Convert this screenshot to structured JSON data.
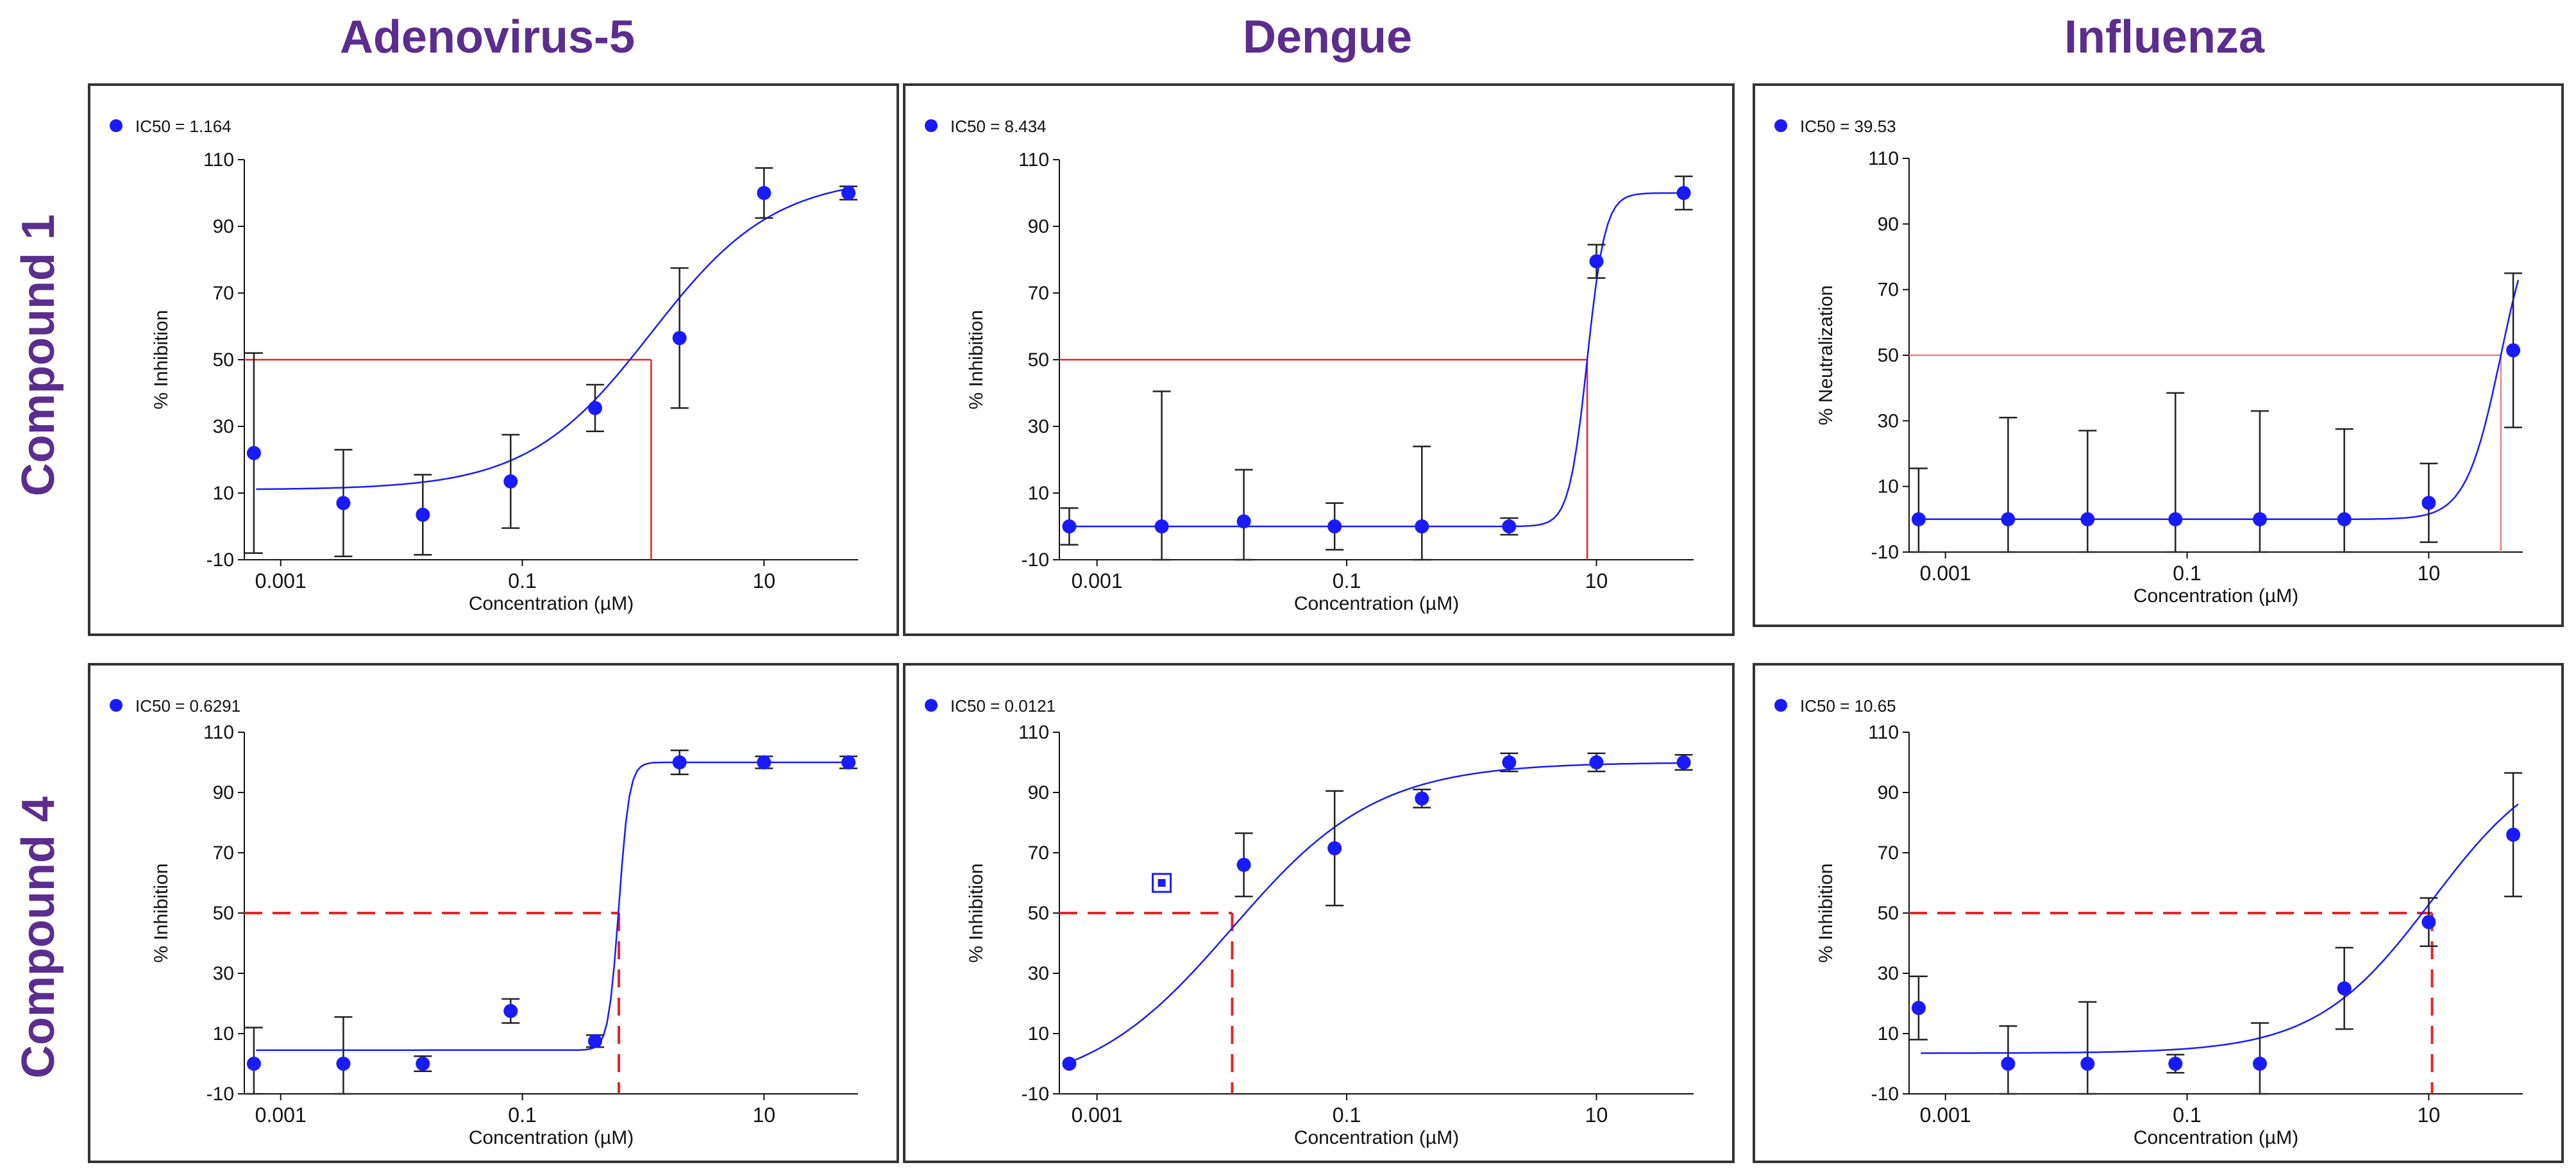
{
  "column_titles": [
    "Adenovirus-5",
    "Dengue",
    "Influenza"
  ],
  "row_titles": [
    "Compound 1",
    "Compound 4"
  ],
  "colors": {
    "title": "#5b2d8e",
    "series": "#1a1aff",
    "threshold": "#e8232a",
    "threshold_light": "#f08080",
    "error_bar": "#222222"
  },
  "chart_data": [
    {
      "type": "scatter",
      "panel": "compound1-adenovirus5",
      "legend": "IC50 = 1.164",
      "ic50": 1.164,
      "xlabel": "Concentration   (µM)",
      "ylabel": "% Inhibition",
      "xscale": "log",
      "xlim": [
        0.0005,
        60
      ],
      "ylim": [
        -10,
        110
      ],
      "yticks": [
        "-10",
        "10",
        "30",
        "50",
        "70",
        "90",
        "110"
      ],
      "xticks": [
        "0.001",
        "0.1",
        "10"
      ],
      "x": [
        0.0006,
        0.0033,
        0.015,
        0.08,
        0.4,
        2,
        10,
        50
      ],
      "y": [
        22,
        7,
        3.5,
        13.5,
        35.5,
        56.5,
        100,
        100
      ],
      "yerr": [
        30,
        16,
        12,
        14,
        7,
        21,
        7.5,
        2
      ],
      "curve": {
        "bottom": 11,
        "top": 105,
        "hill": 0.85
      },
      "threshold": 50,
      "threshold_style": "solid"
    },
    {
      "type": "scatter",
      "panel": "compound1-dengue",
      "legend": "IC50 = 8.434",
      "ic50": 8.434,
      "xlabel": "Concentration (µM)",
      "ylabel": "% Inhibition",
      "xscale": "log",
      "xlim": [
        0.0005,
        60
      ],
      "ylim": [
        -10,
        110
      ],
      "yticks": [
        "-10",
        "10",
        "30",
        "50",
        "70",
        "90",
        "110"
      ],
      "xticks": [
        "0.001",
        "0.1",
        "10"
      ],
      "x": [
        0.0006,
        0.0033,
        0.015,
        0.08,
        0.4,
        2,
        10,
        50
      ],
      "y": [
        0,
        0,
        1.5,
        0,
        0,
        0,
        79.5,
        100
      ],
      "yerr": [
        5.5,
        40.5,
        15.5,
        7,
        24,
        2.5,
        5,
        5
      ],
      "curve": {
        "bottom": 0,
        "top": 100,
        "hill": 6
      },
      "threshold": 50,
      "threshold_style": "solid"
    },
    {
      "type": "scatter",
      "panel": "compound1-influenza",
      "legend": "IC50 = 39.53",
      "ic50": 39.53,
      "xlabel": "Concentration (µM)",
      "ylabel": "% Neutralization",
      "xscale": "log",
      "xlim": [
        0.0005,
        60
      ],
      "ylim": [
        -10,
        110
      ],
      "yticks": [
        "-10",
        "10",
        "30",
        "50",
        "70",
        "90",
        "110"
      ],
      "xticks": [
        "0.001",
        "0.1",
        "10"
      ],
      "x": [
        0.0006,
        0.0033,
        0.015,
        0.08,
        0.4,
        2,
        10,
        50
      ],
      "y": [
        0,
        0,
        0,
        0,
        0,
        0,
        5,
        51.5
      ],
      "yerr": [
        15.5,
        31,
        27,
        38.5,
        33,
        27.5,
        12,
        23.5
      ],
      "curve": {
        "bottom": 0,
        "top": 100,
        "hill": 3
      },
      "threshold": 50,
      "threshold_style": "solid-light"
    },
    {
      "type": "scatter",
      "panel": "compound4-adenovirus5",
      "legend": "IC50 = 0.6291",
      "ic50": 0.6291,
      "xlabel": "Concentration (µM)",
      "ylabel": "% Inhibition",
      "xscale": "log",
      "xlim": [
        0.0005,
        60
      ],
      "ylim": [
        -10,
        110
      ],
      "yticks": [
        "-10",
        "10",
        "30",
        "50",
        "70",
        "90",
        "110"
      ],
      "xticks": [
        "0.001",
        "0.1",
        "10"
      ],
      "x": [
        0.0006,
        0.0033,
        0.015,
        0.08,
        0.4,
        2,
        10,
        50
      ],
      "y": [
        0,
        0,
        0,
        17.5,
        7.5,
        100,
        100,
        100
      ],
      "yerr": [
        12,
        15.5,
        2.5,
        4,
        2,
        4,
        2,
        2
      ],
      "curve": {
        "bottom": 4.5,
        "top": 100,
        "hill": 10
      },
      "threshold": 50,
      "threshold_style": "dashed"
    },
    {
      "type": "scatter",
      "panel": "compound4-dengue",
      "legend": "IC50 = 0.0121",
      "ic50": 0.0121,
      "xlabel": "Concentration (µM)",
      "ylabel": "% Inhibition",
      "xscale": "log",
      "xlim": [
        0.0005,
        60
      ],
      "ylim": [
        -10,
        110
      ],
      "yticks": [
        "-10",
        "10",
        "30",
        "50",
        "70",
        "90",
        "110"
      ],
      "xticks": [
        "0.001",
        "0.1",
        "10"
      ],
      "x": [
        0.0006,
        0.015,
        0.08,
        0.4,
        2,
        10,
        50
      ],
      "y": [
        0,
        66,
        71.5,
        88,
        100,
        100,
        100
      ],
      "yerr": [
        0,
        10.5,
        19,
        3,
        3,
        3,
        2.5
      ],
      "excluded_point": {
        "x": 0.0033,
        "y": 60
      },
      "curve": {
        "bottom": -10,
        "top": 100,
        "hill": 0.75
      },
      "threshold": 50,
      "threshold_style": "dashed"
    },
    {
      "type": "scatter",
      "panel": "compound4-influenza",
      "legend": "IC50 = 10.65",
      "ic50": 10.65,
      "xlabel": "Concentration (µM)",
      "ylabel": "% Inhibition",
      "xscale": "log",
      "xlim": [
        0.0005,
        60
      ],
      "ylim": [
        -10,
        110
      ],
      "yticks": [
        "-10",
        "10",
        "30",
        "50",
        "70",
        "90",
        "110"
      ],
      "xticks": [
        "0.001",
        "0.1",
        "10"
      ],
      "x": [
        0.0006,
        0.0033,
        0.015,
        0.08,
        0.4,
        2,
        10,
        50
      ],
      "y": [
        18.5,
        0,
        0,
        0,
        0,
        25,
        47,
        76
      ],
      "yerr": [
        10.5,
        12.5,
        20.5,
        3,
        13.5,
        13.5,
        8,
        20.5
      ],
      "curve": {
        "bottom": 3.5,
        "top": 105,
        "hill": 0.9
      },
      "threshold": 50,
      "threshold_style": "dashed"
    }
  ]
}
